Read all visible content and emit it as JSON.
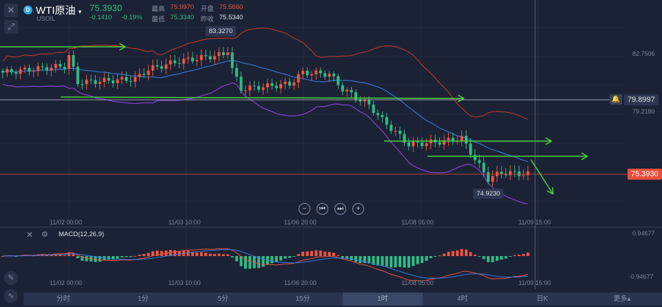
{
  "header": {
    "close_icon": "close-icon",
    "expand_icon": "expand-icon",
    "logo_letter": "D",
    "title": "WTI原油",
    "symbol": "USOIL",
    "last": "75.3930",
    "change": "-0.1410",
    "change_pct": "-0.19%",
    "high_label": "最高",
    "high": "75.9970",
    "open_label": "开盘",
    "open": "75.5660",
    "low_label": "最低",
    "low": "75.3340",
    "prev_label": "昨收",
    "prev": "75.5340"
  },
  "price_axis": {
    "labels": [
      "82.7506",
      "79.2180"
    ],
    "alert_price": "79.8997",
    "current_price": "75.3930"
  },
  "annotations": {
    "high_marker": "83.3270",
    "low_marker": "74.9230"
  },
  "time_axis": [
    "11/02 00:00",
    "11/03 10:00",
    "11/06 20:00",
    "11/08 05:00",
    "11/09 15:00"
  ],
  "macd": {
    "label": "MACD(12,26,9)",
    "max": "0.94677",
    "min": "-0.94677"
  },
  "nav": {
    "zoom_out": "−",
    "prev": "⏮",
    "next": "⏭",
    "zoom_in": "+"
  },
  "tabs": [
    "分时",
    "1分",
    "5分",
    "15分",
    "1时",
    "4时",
    "日K",
    "更多▴"
  ],
  "active_tab": "1时",
  "colors": {
    "up": "#f0553f",
    "down": "#2ebd85",
    "upper_band": "#c0392b",
    "lower_band": "#8e44e0",
    "mid_band": "#3a7be0",
    "drawing": "#4cd63c"
  },
  "price_path": [
    [
      0,
      81.6
    ],
    [
      14,
      82.0
    ],
    [
      15,
      82.6
    ],
    [
      17,
      81.0
    ],
    [
      30,
      81.2
    ],
    [
      33,
      81.8
    ],
    [
      40,
      82.3
    ],
    [
      50,
      82.7
    ],
    [
      51,
      83.0
    ],
    [
      52,
      81.8
    ],
    [
      54,
      80.6
    ],
    [
      65,
      80.9
    ],
    [
      68,
      81.6
    ],
    [
      74,
      81.5
    ],
    [
      77,
      80.6
    ],
    [
      83,
      79.6
    ],
    [
      86,
      78.7
    ],
    [
      92,
      77.2
    ],
    [
      100,
      77.4
    ],
    [
      104,
      77.6
    ],
    [
      107,
      76.3
    ],
    [
      110,
      75.1
    ],
    [
      113,
      75.5
    ],
    [
      119,
      75.39
    ]
  ]
}
